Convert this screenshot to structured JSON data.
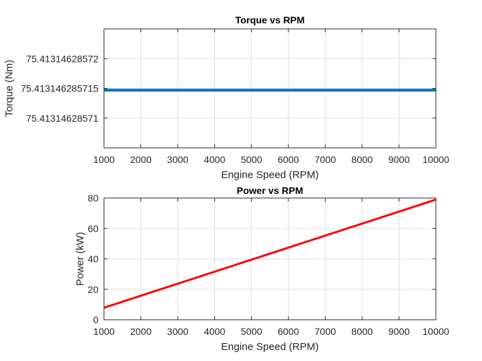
{
  "chart_data": [
    {
      "type": "line",
      "title": "Torque vs RPM",
      "xlabel": "Engine Speed (RPM)",
      "ylabel": "Torque (Nm)",
      "xlim": [
        1000,
        10000
      ],
      "xticks": [
        1000,
        2000,
        3000,
        4000,
        5000,
        6000,
        7000,
        8000,
        9000,
        10000
      ],
      "xtick_labels": [
        "1000",
        "2000",
        "3000",
        "4000",
        "5000",
        "6000",
        "7000",
        "8000",
        "9000",
        "10000"
      ],
      "ylim": [
        75.413146285705,
        75.413146285725
      ],
      "yticks": [
        75.41314628571,
        75.413146285715,
        75.41314628572
      ],
      "ytick_labels": [
        "75.41314628571",
        "75.413146285715",
        "75.41314628572"
      ],
      "grid": true,
      "series": [
        {
          "color": "#0072BD",
          "x": [
            1000,
            10000
          ],
          "y": [
            75.4131462857147,
            75.4131462857147
          ]
        }
      ]
    },
    {
      "type": "line",
      "title": "Power vs RPM",
      "xlabel": "Engine Speed (RPM)",
      "ylabel": "Power (kW)",
      "xlim": [
        1000,
        10000
      ],
      "xticks": [
        1000,
        2000,
        3000,
        4000,
        5000,
        6000,
        7000,
        8000,
        9000,
        10000
      ],
      "xtick_labels": [
        "1000",
        "2000",
        "3000",
        "4000",
        "5000",
        "6000",
        "7000",
        "8000",
        "9000",
        "10000"
      ],
      "ylim": [
        0,
        80
      ],
      "yticks": [
        0,
        20,
        40,
        60,
        80
      ],
      "ytick_labels": [
        "0",
        "20",
        "40",
        "60",
        "80"
      ],
      "grid": true,
      "series": [
        {
          "color": "#FF0000",
          "x": [
            1000,
            10000
          ],
          "y": [
            7.897,
            78.97
          ]
        }
      ]
    }
  ]
}
